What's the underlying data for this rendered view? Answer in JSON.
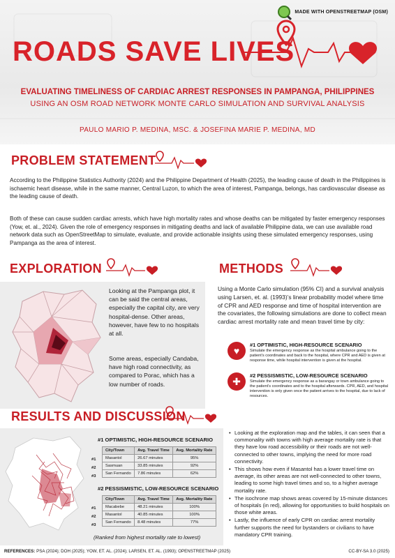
{
  "badge": {
    "text": "MADE WITH OPENSTREETMAP (OSM)",
    "icon": "osm-magnifier-icon"
  },
  "hero": {
    "title": "ROADS SAVE LIVES",
    "subtitle_1": "EVALUATING TIMELINESS OF CARDIAC ARREST RESPONSES IN PAMPANGA, PHILIPPINES",
    "subtitle_2": "USING AN OSM ROAD NETWORK MONTE CARLO SIMULATION AND SURVIVAL ANALYSIS",
    "authors": "PAULO MARIO P. MEDINA, MSC. & JOSEFINA MARIE P. MEDINA, MD"
  },
  "problem": {
    "heading": "PROBLEM STATEMENT",
    "p1": "According to the Philippine Statistics Authority (2024) and the Philippine Department of Health (2025), the leading cause of death in the Philippines is ischaemic heart disease, while in the same manner, Central Luzon, to which the area of interest, Pampanga, belongs, has cardiovascular disease as the leading cause of death.",
    "p2": "Both of these can cause sudden cardiac arrests, which have high mortality rates and whose deaths can be mitigated by faster emergency responses (Yow, et. al., 2024).  Given the role of emergency responses in mitigating deaths and lack of available Philippine data, we can use available road network data such as OpenStreetMap to simulate, evaluate, and provide actionable insights using these simulated emergency responses, using Pampanga as the area of interest."
  },
  "exploration": {
    "heading": "EXPLORATION",
    "p1": "Looking at the Pampanga plot, it can be said the central areas, especially the capital city, are very hospital-dense. Other areas, however, have few to no hospitals at all.",
    "p2": "Some areas, especially Candaba, have high road connectivity, as compared to Porac, which has a low number of roads."
  },
  "methods": {
    "heading": "METHODS",
    "intro": "Using a Monte Carlo simulation (95% CI) and a survival analysis using Larsen, et. al. (1993)’s linear probability model where time of CPR and AED response and time of hospital intervention are the covariates, the following simulations are done to collect mean cardiac arrest mortality rate and mean travel time by city:",
    "scenarios": [
      {
        "title": "#1 OPTIMISTIC, HIGH-RESOURCE SCENARIO",
        "text": "Simulate the emergency response as the hospital ambulance going to the patient’s coordinates and back to the hospital, where CPR and AED is given at response time, while hospital intervention is given at the hospital.",
        "icon": "heart-pulse-icon"
      },
      {
        "title": "#2 PESSISMISTIC, LOW-RESOURCE SCENARIO",
        "text": "Simulate the emergency response as a barangay or town ambulance going to the patient’s coordinates and to the hospital afterwards. CPR, AED, and hospital intervention is only given once the patient arrives to the hospital, due to lack of resources.",
        "icon": "ambulance-icon"
      }
    ]
  },
  "results": {
    "heading": "RESULTS AND DISCUSSION",
    "tables": [
      {
        "title": "#1 OPTIMISTIC, HIGH-RESOURCE SCENARIO",
        "columns": [
          "City/Town",
          "Avg. Travel Time",
          "Avg. Mortality Rate"
        ],
        "rows": [
          {
            "rank": "#1",
            "city": "Masantol",
            "time": "26.67 minutes",
            "rate": "95%"
          },
          {
            "rank": "#2",
            "city": "Sasmuan",
            "time": "33.85 minutes",
            "rate": "92%"
          },
          {
            "rank": "#3",
            "city": "San Fernando",
            "time": "7.86 minutes",
            "rate": "62%"
          }
        ]
      },
      {
        "title": "#2 PESSISMISTIC, LOW-RESOURCE SCENARIO",
        "columns": [
          "City/Town",
          "Avg. Travel Time",
          "Avg. Mortality Rate"
        ],
        "rows": [
          {
            "rank": "#1",
            "city": "Macabebe",
            "time": "48.21 minutes",
            "rate": "100%"
          },
          {
            "rank": "#2",
            "city": "Masantol",
            "time": "40.85 minutes",
            "rate": "100%"
          },
          {
            "rank": "#3",
            "city": "San Fernando",
            "time": "8.48 minutes",
            "rate": "77%"
          }
        ]
      }
    ],
    "note": "(Ranked from highest mortality rate to lowest)",
    "bullets": [
      "Looking at the exploration map and the tables, it can seen that a commonality with towns with high average mortality rate is that they have low road accessibility or their roads are not well-connected to other towns, implying the need for more road connectivity.",
      "This shows how even if Masantol has a lower travel time on average, its other areas are not well-connected to other towns, leading to some high travel times and so, to a higher average mortality rate.",
      "The isochrone map shows areas covered by 15-minute distances of hospitals (in red), allowing for opportunities to build hospitals on those white areas.",
      "Lastly, the influence of early CPR on cardiac arrest mortality further supports the need for bystanders or civilians to have mandatory CPR training."
    ]
  },
  "footer": {
    "references_label": "REFERENCES:",
    "references": "PSA (2024); DOH (2025); YOW, ET. AL. (2024); LARSEN, ET. AL. (1993); OPENSTREETMAP (2025)",
    "license": "CC-BY-SA 3.0 (2025)"
  },
  "colors": {
    "accent": "#c81e25",
    "panel": "#ededed"
  }
}
